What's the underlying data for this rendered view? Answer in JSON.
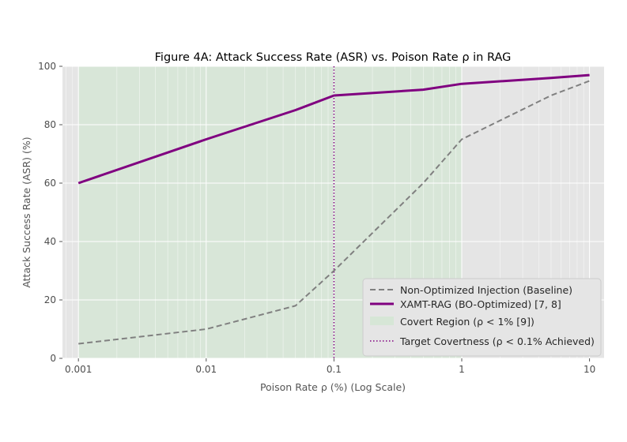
{
  "chart_data": {
    "type": "line",
    "title": "Figure 4A: Attack Success Rate (ASR) vs. Poison Rate ρ in RAG",
    "xlabel": "Poison Rate ρ (%) (Log Scale)",
    "ylabel": "Attack Success Rate (ASR) (%)",
    "xscale": "log",
    "xlim": [
      0.00075,
      13
    ],
    "ylim": [
      0,
      100
    ],
    "x_ticks": [
      0.001,
      0.01,
      0.1,
      1,
      10
    ],
    "x_tick_labels": [
      "0.001",
      "0.01",
      "0.1",
      "1",
      "10"
    ],
    "y_ticks": [
      0,
      20,
      40,
      60,
      80,
      100
    ],
    "y_tick_labels": [
      "0",
      "20",
      "40",
      "60",
      "80",
      "100"
    ],
    "grid": true,
    "legend_position": "lower-right",
    "series": [
      {
        "name": "Non-Optimized Injection (Baseline)",
        "style": "dashed",
        "color": "#808080",
        "x": [
          0.001,
          0.01,
          0.05,
          0.1,
          0.5,
          1,
          5,
          10
        ],
        "y": [
          5,
          10,
          18,
          30,
          60,
          75,
          90,
          95
        ]
      },
      {
        "name": "XAMT-RAG (BO-Optimized) [7, 8]",
        "style": "solid",
        "color": "#800080",
        "x": [
          0.001,
          0.01,
          0.05,
          0.1,
          0.5,
          1,
          5,
          10
        ],
        "y": [
          60,
          75,
          85,
          90,
          92,
          94,
          96,
          97
        ]
      }
    ],
    "regions": [
      {
        "name": "Covert Region (ρ < 1% [9])",
        "x_start": 0.001,
        "x_end": 1,
        "color": "#d4e6d4"
      }
    ],
    "reference_lines": [
      {
        "name": "Target Covertness (ρ < 0.1% Achieved)",
        "x": 0.1,
        "style": "dotted",
        "color": "#800080"
      }
    ]
  }
}
